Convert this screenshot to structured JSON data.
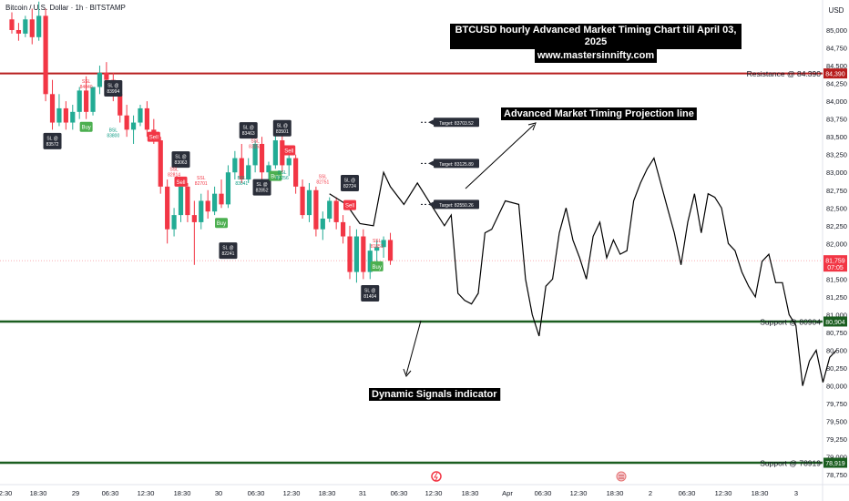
{
  "header": {
    "symbol_line": "Bitcoin / U.S. Dollar · 1h · BITSTAMP"
  },
  "title": {
    "line1": "BTCUSD hourly Advanced Market Timing Chart till April 03, 2025",
    "line2": "www.mastersinnifty.com"
  },
  "axis": {
    "currency": "USD",
    "y_ticks": [
      "85,000",
      "84,750",
      "84,500",
      "84,250",
      "84,000",
      "83,750",
      "83,500",
      "83,250",
      "83,000",
      "82,750",
      "82,500",
      "82,250",
      "82,000",
      "81,750",
      "81,500",
      "81,250",
      "81,000",
      "80,750",
      "80,500",
      "80,250",
      "80,000",
      "79,750",
      "79,500",
      "79,250",
      "79,000",
      "78,750"
    ],
    "x_ticks": [
      "2:30",
      "18:30",
      "29",
      "06:30",
      "12:30",
      "18:30",
      "30",
      "06:30",
      "12:30",
      "18:30",
      "31",
      "06:30",
      "12:30",
      "18:30",
      "Apr",
      "06:30",
      "12:30",
      "18:30",
      "2",
      "06:30",
      "12:30",
      "18:30",
      "3"
    ]
  },
  "levels": {
    "resistance": {
      "label": "Resistance @ 84.390",
      "tag": "84,390",
      "value": 84390,
      "color": "#b71c1c"
    },
    "support1": {
      "label": "Support @ 80904",
      "tag": "80,904",
      "value": 80904,
      "color": "#1b5e20"
    },
    "support2": {
      "label": "Support @ 78919",
      "tag": "78,919",
      "value": 78919,
      "color": "#1b5e20"
    },
    "current": {
      "price": "81,759",
      "countdown": "07:05",
      "value": 81759,
      "color": "#f23645"
    }
  },
  "annotations": {
    "projection": "Advanced Market Timing Projection line",
    "signals": "Dynamic Signals indicator"
  },
  "targets": [
    {
      "label": "Target: 83703.52",
      "value": 83703.52
    },
    {
      "label": "Target: 83125.89",
      "value": 83125.89
    },
    {
      "label": "Target: 82550.26",
      "value": 82550.26
    }
  ],
  "signals": {
    "sl": [
      {
        "line1": "SL @",
        "line2": "83994",
        "i": 15,
        "price": 84180
      },
      {
        "line1": "SL @",
        "line2": "83572",
        "i": 6,
        "price": 83440
      },
      {
        "line1": "SL @",
        "line2": "83063",
        "i": 25,
        "price": 83180
      },
      {
        "line1": "SL @",
        "line2": "83463",
        "i": 35,
        "price": 83590
      },
      {
        "line1": "SL @",
        "line2": "83501",
        "i": 40,
        "price": 83620
      },
      {
        "line1": "SL @",
        "line2": "82852",
        "i": 37,
        "price": 82790
      },
      {
        "line1": "SL @",
        "line2": "82724",
        "i": 50,
        "price": 82850
      },
      {
        "line1": "SL @",
        "line2": "82241",
        "i": 32,
        "price": 81900
      },
      {
        "line1": "SL @",
        "line2": "81404",
        "i": 53,
        "price": 81300
      }
    ],
    "buy": [
      {
        "label": "Buy",
        "i": 11,
        "price": 83640
      },
      {
        "label": "Buy",
        "i": 31,
        "price": 82290
      },
      {
        "label": "Buy",
        "i": 39,
        "price": 82950
      },
      {
        "label": "Buy",
        "i": 54,
        "price": 81680
      }
    ],
    "sell": [
      {
        "label": "Sell",
        "i": 21,
        "price": 83500
      },
      {
        "label": "Sell",
        "i": 25,
        "price": 82870
      },
      {
        "label": "Sell",
        "i": 41,
        "price": 83310
      },
      {
        "label": "Sell",
        "i": 50,
        "price": 82540
      }
    ],
    "ssl": [
      {
        "line1": "SSL",
        "line2": "84040",
        "i": 11,
        "price": 84260
      },
      {
        "line1": "SSL",
        "line2": "82814",
        "i": 24,
        "price": 83020
      },
      {
        "line1": "SSL",
        "line2": "82701",
        "i": 28,
        "price": 82900
      },
      {
        "line1": "SSL",
        "line2": "83253",
        "i": 36,
        "price": 83420
      },
      {
        "line1": "SSL",
        "line2": "82751",
        "i": 46,
        "price": 82920
      },
      {
        "line1": "SSL",
        "line2": "81851",
        "i": 54,
        "price": 82020
      }
    ],
    "bsl": [
      {
        "line1": "BSL",
        "line2": "83800",
        "i": 15,
        "price": 83570
      },
      {
        "line1": "BSL",
        "line2": "83041",
        "i": 34,
        "price": 82900
      },
      {
        "line1": "BSL",
        "line2": "83256",
        "i": 40,
        "price": 82980
      }
    ]
  },
  "chart_data": {
    "type": "candlestick",
    "title": "BTCUSD hourly Advanced Market Timing Chart till April 03, 2025",
    "ylabel": "USD",
    "ylim": [
      78740,
      85160
    ],
    "candles": [
      {
        "o": 85150,
        "h": 85250,
        "l": 84950,
        "c": 85000
      },
      {
        "o": 85000,
        "h": 85100,
        "l": 84850,
        "c": 84950
      },
      {
        "o": 84950,
        "h": 85200,
        "l": 84900,
        "c": 85150
      },
      {
        "o": 85150,
        "h": 85300,
        "l": 84800,
        "c": 84900
      },
      {
        "o": 84900,
        "h": 85400,
        "l": 84850,
        "c": 85200
      },
      {
        "o": 85200,
        "h": 85300,
        "l": 84000,
        "c": 84100
      },
      {
        "o": 84100,
        "h": 84300,
        "l": 83600,
        "c": 83700
      },
      {
        "o": 83700,
        "h": 84100,
        "l": 83650,
        "c": 83900
      },
      {
        "o": 83900,
        "h": 84000,
        "l": 83600,
        "c": 83700
      },
      {
        "o": 83700,
        "h": 83950,
        "l": 83600,
        "c": 83850
      },
      {
        "o": 83850,
        "h": 84200,
        "l": 83750,
        "c": 84150
      },
      {
        "o": 84150,
        "h": 84350,
        "l": 83750,
        "c": 83850
      },
      {
        "o": 83850,
        "h": 84200,
        "l": 83800,
        "c": 84200
      },
      {
        "o": 84200,
        "h": 84500,
        "l": 84100,
        "c": 84400
      },
      {
        "o": 84400,
        "h": 84550,
        "l": 84200,
        "c": 84300
      },
      {
        "o": 84300,
        "h": 84400,
        "l": 84000,
        "c": 84100
      },
      {
        "o": 84100,
        "h": 84200,
        "l": 83700,
        "c": 83800
      },
      {
        "o": 83800,
        "h": 83950,
        "l": 83500,
        "c": 83600
      },
      {
        "o": 83600,
        "h": 83800,
        "l": 83400,
        "c": 83700
      },
      {
        "o": 83700,
        "h": 83950,
        "l": 83650,
        "c": 83900
      },
      {
        "o": 83900,
        "h": 84000,
        "l": 83500,
        "c": 83600
      },
      {
        "o": 83600,
        "h": 83750,
        "l": 83400,
        "c": 83450
      },
      {
        "o": 83450,
        "h": 83500,
        "l": 82700,
        "c": 82800
      },
      {
        "o": 82800,
        "h": 82900,
        "l": 82000,
        "c": 82200
      },
      {
        "o": 82200,
        "h": 82500,
        "l": 82100,
        "c": 82400
      },
      {
        "o": 82400,
        "h": 82900,
        "l": 82300,
        "c": 82800
      },
      {
        "o": 82800,
        "h": 82850,
        "l": 82300,
        "c": 82400
      },
      {
        "o": 82400,
        "h": 82600,
        "l": 81700,
        "c": 82300
      },
      {
        "o": 82300,
        "h": 82700,
        "l": 82200,
        "c": 82600
      },
      {
        "o": 82600,
        "h": 82750,
        "l": 82350,
        "c": 82450
      },
      {
        "o": 82450,
        "h": 82800,
        "l": 82400,
        "c": 82700
      },
      {
        "o": 82700,
        "h": 82900,
        "l": 82500,
        "c": 82550
      },
      {
        "o": 82550,
        "h": 83100,
        "l": 82500,
        "c": 83000
      },
      {
        "o": 83000,
        "h": 83300,
        "l": 82900,
        "c": 83200
      },
      {
        "o": 83200,
        "h": 83400,
        "l": 82850,
        "c": 82900
      },
      {
        "o": 82900,
        "h": 83200,
        "l": 82850,
        "c": 83100
      },
      {
        "o": 83100,
        "h": 83450,
        "l": 83000,
        "c": 83400
      },
      {
        "o": 83400,
        "h": 83500,
        "l": 82900,
        "c": 83000
      },
      {
        "o": 83000,
        "h": 83150,
        "l": 82850,
        "c": 83100
      },
      {
        "o": 83100,
        "h": 83550,
        "l": 83050,
        "c": 83450
      },
      {
        "o": 83450,
        "h": 83550,
        "l": 83000,
        "c": 83100
      },
      {
        "o": 83100,
        "h": 83300,
        "l": 82950,
        "c": 83200
      },
      {
        "o": 83200,
        "h": 83250,
        "l": 82700,
        "c": 82800
      },
      {
        "o": 82800,
        "h": 82900,
        "l": 82350,
        "c": 82400
      },
      {
        "o": 82400,
        "h": 82850,
        "l": 82300,
        "c": 82750
      },
      {
        "o": 82750,
        "h": 82800,
        "l": 82100,
        "c": 82200
      },
      {
        "o": 82200,
        "h": 82450,
        "l": 82050,
        "c": 82350
      },
      {
        "o": 82350,
        "h": 82650,
        "l": 82300,
        "c": 82600
      },
      {
        "o": 82600,
        "h": 82650,
        "l": 82200,
        "c": 82300
      },
      {
        "o": 82300,
        "h": 82400,
        "l": 82000,
        "c": 82100
      },
      {
        "o": 82100,
        "h": 82250,
        "l": 81500,
        "c": 81600
      },
      {
        "o": 81600,
        "h": 82200,
        "l": 81450,
        "c": 82100
      },
      {
        "o": 82100,
        "h": 82200,
        "l": 81500,
        "c": 81600
      },
      {
        "o": 81600,
        "h": 82000,
        "l": 81500,
        "c": 81900
      },
      {
        "o": 81900,
        "h": 82050,
        "l": 81700,
        "c": 81950
      },
      {
        "o": 81950,
        "h": 82100,
        "l": 81800,
        "c": 82050
      },
      {
        "o": 82050,
        "h": 82150,
        "l": 81700,
        "c": 81759
      }
    ],
    "projection": [
      {
        "i": 47,
        "v": 82700
      },
      {
        "i": 49.5,
        "v": 82550
      },
      {
        "i": 51.5,
        "v": 82280
      },
      {
        "i": 53.5,
        "v": 82250
      },
      {
        "i": 55,
        "v": 83000
      },
      {
        "i": 56,
        "v": 82800
      },
      {
        "i": 58,
        "v": 82550
      },
      {
        "i": 60,
        "v": 82850
      },
      {
        "i": 62,
        "v": 82550
      },
      {
        "i": 64,
        "v": 82250
      },
      {
        "i": 65,
        "v": 82400
      },
      {
        "i": 66,
        "v": 81300
      },
      {
        "i": 67,
        "v": 81200
      },
      {
        "i": 68,
        "v": 81150
      },
      {
        "i": 69,
        "v": 81300
      },
      {
        "i": 70,
        "v": 82150
      },
      {
        "i": 71,
        "v": 82200
      },
      {
        "i": 73,
        "v": 82600
      },
      {
        "i": 75,
        "v": 82550
      },
      {
        "i": 76,
        "v": 81500
      },
      {
        "i": 77,
        "v": 81000
      },
      {
        "i": 78,
        "v": 80700
      },
      {
        "i": 79,
        "v": 81400
      },
      {
        "i": 80,
        "v": 81500
      },
      {
        "i": 81,
        "v": 82150
      },
      {
        "i": 82,
        "v": 82500
      },
      {
        "i": 83,
        "v": 82050
      },
      {
        "i": 84,
        "v": 81800
      },
      {
        "i": 85,
        "v": 81500
      },
      {
        "i": 86,
        "v": 82100
      },
      {
        "i": 87,
        "v": 82300
      },
      {
        "i": 88,
        "v": 81800
      },
      {
        "i": 89,
        "v": 82050
      },
      {
        "i": 90,
        "v": 81850
      },
      {
        "i": 91,
        "v": 81900
      },
      {
        "i": 92,
        "v": 82600
      },
      {
        "i": 93,
        "v": 82850
      },
      {
        "i": 94,
        "v": 83050
      },
      {
        "i": 95,
        "v": 83200
      },
      {
        "i": 96,
        "v": 82850
      },
      {
        "i": 97,
        "v": 82500
      },
      {
        "i": 98,
        "v": 82150
      },
      {
        "i": 99,
        "v": 81700
      },
      {
        "i": 100,
        "v": 82300
      },
      {
        "i": 101,
        "v": 82700
      },
      {
        "i": 102,
        "v": 82150
      },
      {
        "i": 103,
        "v": 82700
      },
      {
        "i": 104,
        "v": 82650
      },
      {
        "i": 105,
        "v": 82500
      },
      {
        "i": 106,
        "v": 82000
      },
      {
        "i": 107,
        "v": 81900
      },
      {
        "i": 108,
        "v": 81600
      },
      {
        "i": 109,
        "v": 81400
      },
      {
        "i": 110,
        "v": 81250
      },
      {
        "i": 111,
        "v": 81750
      },
      {
        "i": 112,
        "v": 81850
      },
      {
        "i": 113,
        "v": 81450
      },
      {
        "i": 114,
        "v": 81450
      },
      {
        "i": 115,
        "v": 81000
      },
      {
        "i": 116,
        "v": 80850
      },
      {
        "i": 117,
        "v": 80000
      },
      {
        "i": 118,
        "v": 80350
      },
      {
        "i": 119,
        "v": 80500
      },
      {
        "i": 120,
        "v": 80050
      },
      {
        "i": 121,
        "v": 80400
      },
      {
        "i": 122,
        "v": 80500
      }
    ]
  }
}
